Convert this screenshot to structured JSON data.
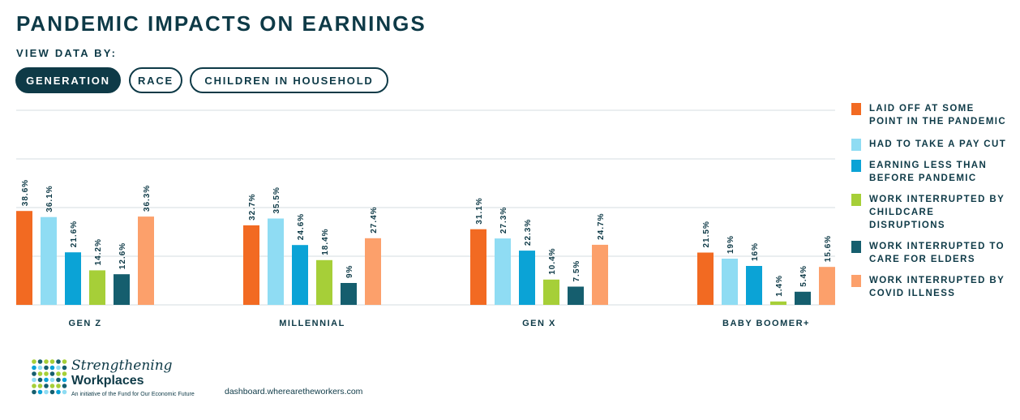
{
  "title": "PANDEMIC IMPACTS ON EARNINGS",
  "view_by_label": "VIEW DATA BY:",
  "filters": [
    {
      "label": "GENERATION",
      "active": true
    },
    {
      "label": "RACE",
      "active": false
    },
    {
      "label": "CHILDREN IN HOUSEHOLD",
      "active": false
    }
  ],
  "chart_data": {
    "type": "bar",
    "categories": [
      "GEN Z",
      "MILLENNIAL",
      "GEN X",
      "BABY BOOMER+"
    ],
    "ylim": [
      0,
      80
    ],
    "grid": true,
    "legend_position": "right",
    "series": [
      {
        "name": "LAID OFF AT SOME POINT IN THE PANDEMIC",
        "color": "#f26a22",
        "values": [
          38.6,
          32.7,
          31.1,
          21.5
        ],
        "labels": [
          "38.6%",
          "32.7%",
          "31.1%",
          "21.5%"
        ]
      },
      {
        "name": "HAD TO TAKE A PAY CUT",
        "color": "#8fdcf3",
        "values": [
          36.1,
          35.5,
          27.3,
          19
        ],
        "labels": [
          "36.1%",
          "35.5%",
          "27.3%",
          "19%"
        ]
      },
      {
        "name": "EARNING LESS THAN BEFORE PANDEMIC",
        "color": "#0ba3d6",
        "values": [
          21.6,
          24.6,
          22.3,
          16
        ],
        "labels": [
          "21.6%",
          "24.6%",
          "22.3%",
          "16%"
        ]
      },
      {
        "name": "WORK INTERRUPTED BY CHILDCARE DISRUPTIONS",
        "color": "#a6cf38",
        "values": [
          14.2,
          18.4,
          10.4,
          1.4
        ],
        "labels": [
          "14.2%",
          "18.4%",
          "10.4%",
          "1.4%"
        ]
      },
      {
        "name": "WORK INTERRUPTED TO CARE FOR ELDERS",
        "color": "#155e6e",
        "values": [
          12.6,
          9,
          7.5,
          5.4
        ],
        "labels": [
          "12.6%",
          "9%",
          "7.5%",
          "5.4%"
        ]
      },
      {
        "name": "WORK INTERRUPTED BY COVID ILLNESS",
        "color": "#fca06b",
        "values": [
          36.3,
          27.4,
          24.7,
          15.6
        ],
        "labels": [
          "36.3%",
          "27.4%",
          "24.7%",
          "15.6%"
        ]
      }
    ]
  },
  "footer": {
    "logo_line1": "Strengthening",
    "logo_line2": "Workplaces",
    "logo_tagline": "An initiative of the Fund for Our Economic Future",
    "url": "dashboard.wherearetheworkers.com"
  }
}
